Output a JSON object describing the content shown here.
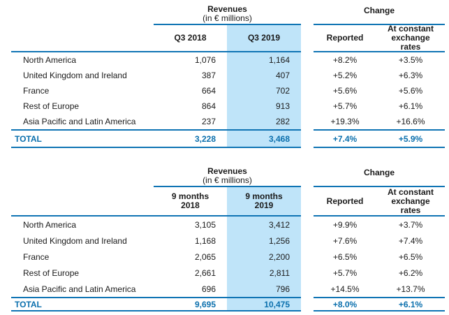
{
  "colors": {
    "accent": "#0f74b4",
    "highlight": "#bfe4f9",
    "total_text": "#0a6fad",
    "body_text": "#1a1a1a"
  },
  "tables": [
    {
      "name": "Q3 revenues",
      "header": {
        "revenues_title": "Revenues",
        "revenues_subtitle": "(in € millions)",
        "change_title": "Change",
        "col_prev": "Q3 2018",
        "col_curr": "Q3 2019",
        "col_reported": "Reported",
        "col_constant": "At constant exchange rates"
      },
      "rows": [
        {
          "label": "North America",
          "prev": "1,076",
          "curr": "1,164",
          "reported": "+8.2%",
          "constant": "+3.5%"
        },
        {
          "label": "United Kingdom and Ireland",
          "prev": "387",
          "curr": "407",
          "reported": "+5.2%",
          "constant": "+6.3%"
        },
        {
          "label": "France",
          "prev": "664",
          "curr": "702",
          "reported": "+5.6%",
          "constant": "+5.6%"
        },
        {
          "label": "Rest of Europe",
          "prev": "864",
          "curr": "913",
          "reported": "+5.7%",
          "constant": "+6.1%"
        },
        {
          "label": "Asia Pacific and Latin America",
          "prev": "237",
          "curr": "282",
          "reported": "+19.3%",
          "constant": "+16.6%"
        }
      ],
      "total": {
        "label": "TOTAL",
        "prev": "3,228",
        "curr": "3,468",
        "reported": "+7.4%",
        "constant": "+5.9%"
      }
    },
    {
      "name": "9 months revenues",
      "header": {
        "revenues_title": "Revenues",
        "revenues_subtitle": "(in € millions)",
        "change_title": "Change",
        "col_prev": "9 months 2018",
        "col_curr": "9 months 2019",
        "col_reported": "Reported",
        "col_constant": "At constant exchange rates"
      },
      "rows": [
        {
          "label": "North America",
          "prev": "3,105",
          "curr": "3,412",
          "reported": "+9.9%",
          "constant": "+3.7%"
        },
        {
          "label": "United Kingdom and Ireland",
          "prev": "1,168",
          "curr": "1,256",
          "reported": "+7.6%",
          "constant": "+7.4%"
        },
        {
          "label": "France",
          "prev": "2,065",
          "curr": "2,200",
          "reported": "+6.5%",
          "constant": "+6.5%"
        },
        {
          "label": "Rest of Europe",
          "prev": "2,661",
          "curr": "2,811",
          "reported": "+5.7%",
          "constant": "+6.2%"
        },
        {
          "label": "Asia Pacific and Latin America",
          "prev": "696",
          "curr": "796",
          "reported": "+14.5%",
          "constant": "+13.7%"
        }
      ],
      "total": {
        "label": "TOTAL",
        "prev": "9,695",
        "curr": "10,475",
        "reported": "+8.0%",
        "constant": "+6.1%"
      }
    }
  ]
}
